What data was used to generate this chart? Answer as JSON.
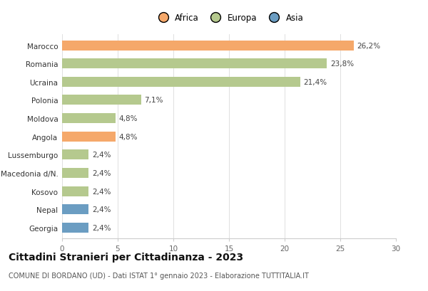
{
  "categories": [
    "Marocco",
    "Romania",
    "Ucraina",
    "Polonia",
    "Moldova",
    "Angola",
    "Lussemburgo",
    "Macedonia d/N.",
    "Kosovo",
    "Nepal",
    "Georgia"
  ],
  "values": [
    26.2,
    23.8,
    21.4,
    7.1,
    4.8,
    4.8,
    2.4,
    2.4,
    2.4,
    2.4,
    2.4
  ],
  "labels": [
    "26,2%",
    "23,8%",
    "21,4%",
    "7,1%",
    "4,8%",
    "4,8%",
    "2,4%",
    "2,4%",
    "2,4%",
    "2,4%",
    "2,4%"
  ],
  "continents": [
    "Africa",
    "Europa",
    "Europa",
    "Europa",
    "Europa",
    "Africa",
    "Europa",
    "Europa",
    "Europa",
    "Asia",
    "Asia"
  ],
  "colors": {
    "Africa": "#F5A86A",
    "Europa": "#B5C98E",
    "Asia": "#6B9DC2"
  },
  "xlim": [
    0,
    30
  ],
  "xticks": [
    0,
    5,
    10,
    15,
    20,
    25,
    30
  ],
  "title": "Cittadini Stranieri per Cittadinanza - 2023",
  "subtitle": "COMUNE DI BORDANO (UD) - Dati ISTAT 1° gennaio 2023 - Elaborazione TUTTITALIA.IT",
  "background_color": "#ffffff",
  "bar_height": 0.55,
  "label_fontsize": 7.5,
  "title_fontsize": 10,
  "subtitle_fontsize": 7,
  "tick_fontsize": 7.5,
  "legend_fontsize": 8.5,
  "ytick_fontsize": 7.5
}
